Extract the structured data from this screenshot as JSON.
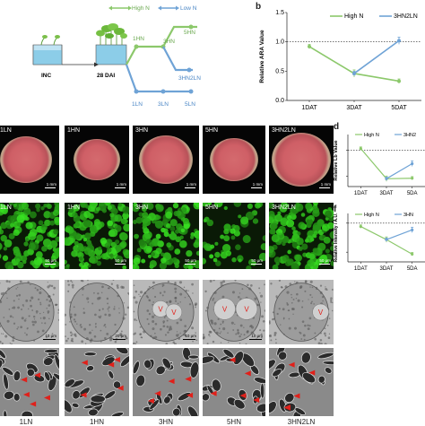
{
  "schematic": {
    "high_n": "High N",
    "low_n": "Low N",
    "inc": "INC",
    "dai": "28 DAI",
    "up": [
      "1HN",
      "3HN",
      "5HN"
    ],
    "down": [
      "1LN",
      "3LN",
      "5LN"
    ],
    "mid": "3HN2LN",
    "colors": {
      "high": "#8cc86b",
      "low": "#6fa3d6"
    }
  },
  "panel_letters": {
    "b": "b",
    "d": "d",
    "f": "f"
  },
  "chart_data": [
    {
      "type": "line",
      "ylabel": "Relative ARA Value",
      "categories": [
        "1DAT",
        "3DAT",
        "5DAT"
      ],
      "ylim": [
        0,
        1.5
      ],
      "yticks": [
        "0.0",
        "0.5",
        "1.0",
        "1.5"
      ],
      "reference_line": 1.0,
      "series": [
        {
          "name": "High N",
          "color": "#8cc86b",
          "values": [
            0.92,
            0.46,
            0.33
          ]
        },
        {
          "name": "3HN2LN",
          "color": "#6fa3d6",
          "values": [
            null,
            0.46,
            1.02
          ]
        }
      ]
    },
    {
      "type": "line",
      "ylabel": "Relative Lb Value",
      "categories": [
        "1DAT",
        "3DAT",
        "5DAT"
      ],
      "ylim": [
        0.3,
        1.3
      ],
      "reference_line": 1.0,
      "series": [
        {
          "name": "High N",
          "color": "#8cc86b",
          "values": [
            1.03,
            0.45,
            0.46
          ]
        },
        {
          "name": "3HN2LN",
          "color": "#6fa3d6",
          "values": [
            null,
            0.45,
            0.74
          ]
        }
      ]
    },
    {
      "type": "line",
      "ylabel": "Relative Intensity / A.U.",
      "categories": [
        "1DAT",
        "3DAT",
        "5DAT"
      ],
      "ylim": [
        0.2,
        1.2
      ],
      "reference_line": 1.0,
      "series": [
        {
          "name": "High N",
          "color": "#8cc86b",
          "values": [
            0.93,
            0.66,
            0.36
          ]
        },
        {
          "name": "3HN2LN",
          "color": "#6fa3d6",
          "values": [
            null,
            0.66,
            0.86
          ]
        }
      ]
    }
  ],
  "legend_short": {
    "d": [
      "High N",
      "3HN2"
    ],
    "f": [
      "High N",
      "3HN"
    ]
  },
  "xlabels_short": [
    "1DAT",
    "3DAT",
    "5DA"
  ],
  "nodule_labels": [
    "1LN",
    "1HN",
    "3HN",
    "5HN",
    "3HN2LN"
  ],
  "nodule_scale": "1 mm",
  "fluor_labels": [
    "1LN",
    "1HN",
    "3HN",
    "5HN",
    "3HN2LN"
  ],
  "fluor_scale": "50 μm",
  "tem_scales": [
    "10 μm",
    "20 μm",
    "10 μm",
    "10 μm",
    ""
  ],
  "tem_v": "V",
  "bottom_labels": [
    "1LN",
    "1HN",
    "3HN",
    "5HN",
    "3HN2LN"
  ],
  "colors": {
    "fluor_bg": "#0a1a06",
    "fluor_cell": "#3fb82d",
    "tem_bg": "#b9b9b9",
    "nodule_red": "#d46a6e",
    "arrow": "#e0201a"
  }
}
